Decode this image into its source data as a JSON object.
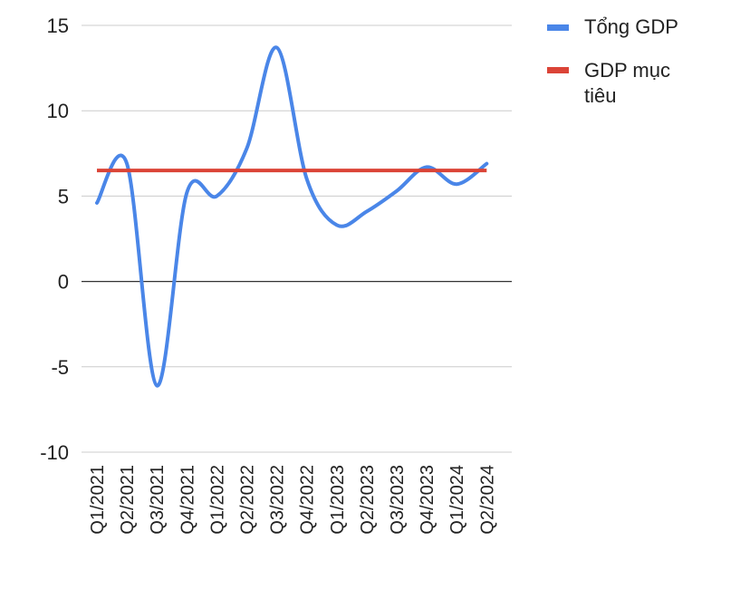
{
  "chart_data": {
    "type": "line",
    "title": "",
    "xlabel": "",
    "ylabel": "",
    "categories": [
      "Q1/2021",
      "Q2/2021",
      "Q3/2021",
      "Q4/2021",
      "Q1/2022",
      "Q2/2022",
      "Q3/2022",
      "Q4/2022",
      "Q1/2023",
      "Q2/2023",
      "Q3/2023",
      "Q4/2023",
      "Q1/2024",
      "Q2/2024"
    ],
    "ylim": [
      -10,
      15
    ],
    "yticks": [
      "15",
      "10",
      "5",
      "0",
      "-5",
      "-10"
    ],
    "grid": true,
    "legend_position": "top-right",
    "series": [
      {
        "name": "Tổng GDP",
        "color": "#4a86e8",
        "values": [
          4.6,
          6.9,
          -6.1,
          5.2,
          5.0,
          7.8,
          13.7,
          6.0,
          3.3,
          4.1,
          5.3,
          6.7,
          5.7,
          6.9
        ]
      },
      {
        "name": "GDP mục tiêu",
        "color": "#db4437",
        "values": [
          6.5,
          6.5,
          6.5,
          6.5,
          6.5,
          6.5,
          6.5,
          6.5,
          6.5,
          6.5,
          6.5,
          6.5,
          6.5,
          6.5
        ]
      }
    ]
  },
  "legend": {
    "item1": "Tổng GDP",
    "item2_line1": "GDP mục",
    "item2_line2": "tiêu"
  }
}
